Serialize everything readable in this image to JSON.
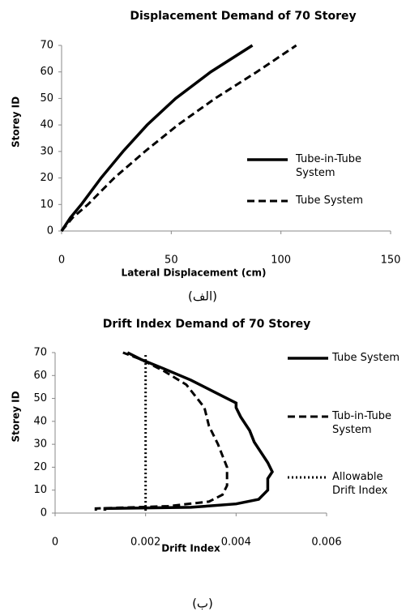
{
  "chart_data": [
    {
      "type": "line",
      "title": "Displacement Demand of 70 Storey",
      "x_label": "Lateral Displacement (cm)",
      "y_label": "Storey ID",
      "caption": "(الف)",
      "xlim": [
        0,
        150
      ],
      "xticks": [
        0,
        50,
        100,
        150
      ],
      "ylim": [
        0,
        70
      ],
      "yticks": [
        0,
        10,
        20,
        30,
        40,
        50,
        60,
        70
      ],
      "grid": false,
      "series": [
        {
          "name": "Tube-in-Tube System",
          "color": "#000000",
          "dash": "solid",
          "x": [
            0,
            4,
            9,
            18,
            28,
            39,
            52,
            68,
            87
          ],
          "values": [
            0,
            5,
            10,
            20,
            30,
            40,
            50,
            60,
            70
          ]
        },
        {
          "name": "Tube System",
          "color": "#000000",
          "dash": "dashed",
          "x": [
            0,
            5,
            12,
            24,
            38,
            53,
            70,
            89,
            107
          ],
          "values": [
            0,
            5,
            10,
            20,
            30,
            40,
            50,
            60,
            70
          ]
        }
      ]
    },
    {
      "type": "line",
      "title": "Drift Index Demand of 70 Storey",
      "x_label": "Drift Index",
      "y_label": "Storey ID",
      "caption": "(ب)",
      "xlim": [
        0,
        0.006
      ],
      "xticks": [
        0,
        0.002,
        0.004,
        0.006
      ],
      "ylim": [
        0,
        70
      ],
      "yticks": [
        0,
        10,
        20,
        30,
        40,
        50,
        60,
        70
      ],
      "grid": false,
      "series": [
        {
          "name": "Tube System",
          "color": "#000000",
          "dash": "solid",
          "x": [
            0.0011,
            0.0011,
            0.003,
            0.004,
            0.0045,
            0.0047,
            0.0047,
            0.0048,
            0.0047,
            0.0045,
            0.0044,
            0.0043,
            0.0041,
            0.004,
            0.004,
            0.0036,
            0.003,
            0.0024,
            0.0019,
            0.0016
          ],
          "values": [
            1,
            2,
            2.5,
            4,
            6,
            10,
            15,
            18,
            22,
            28,
            31,
            36,
            42,
            46,
            48,
            52,
            58,
            63,
            67,
            70
          ]
        },
        {
          "name": "Tub-in-Tube System",
          "color": "#000000",
          "dash": "dashed",
          "x": [
            0.0009,
            0.0009,
            0.0025,
            0.0034,
            0.0037,
            0.0038,
            0.0038,
            0.0036,
            0.0034,
            0.0033,
            0.0029,
            0.0024,
            0.0019,
            0.0015
          ],
          "values": [
            1,
            2,
            3,
            5,
            8,
            12,
            20,
            30,
            38,
            46,
            56,
            62,
            67,
            70
          ]
        },
        {
          "name": "Allowable Drift Index",
          "color": "#000000",
          "dash": "dotted",
          "x": [
            0.002,
            0.002
          ],
          "values": [
            1,
            69
          ]
        }
      ]
    }
  ]
}
